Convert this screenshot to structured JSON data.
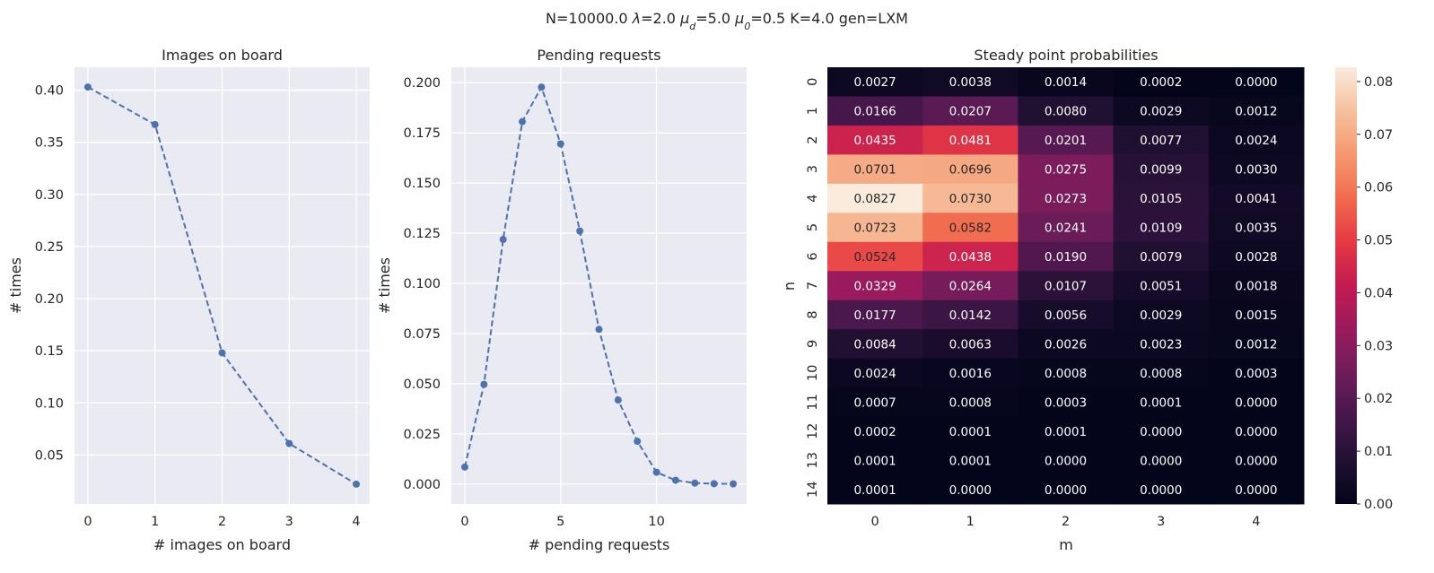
{
  "figure": {
    "suptitle": "N=10000.0  λ=2.0  μ_d=5.0  μ_0=0.5  K=4.0  gen=LXM",
    "suptitle_parts": [
      {
        "t": "N=10000.0  "
      },
      {
        "t": "λ",
        "style": "italic"
      },
      {
        "t": "=2.0  "
      },
      {
        "t": "μ",
        "style": "italic"
      },
      {
        "t": "d",
        "style": "sub"
      },
      {
        "t": "=5.0  "
      },
      {
        "t": "μ",
        "style": "italic"
      },
      {
        "t": "0",
        "style": "sub"
      },
      {
        "t": "=0.5  K=4.0  gen=LXM"
      }
    ]
  },
  "chart_data": [
    {
      "type": "line",
      "title": "Images on board",
      "xlabel": "# images on board",
      "ylabel": "# times",
      "x": [
        0,
        1,
        2,
        3,
        4
      ],
      "values": [
        0.403,
        0.367,
        0.148,
        0.061,
        0.022
      ],
      "xlim": [
        -0.2,
        4.2
      ],
      "ylim": [
        0.003,
        0.422
      ],
      "xticks": [
        0,
        1,
        2,
        3,
        4
      ],
      "yticks": [
        0.05,
        0.1,
        0.15,
        0.2,
        0.25,
        0.3,
        0.35,
        0.4
      ],
      "ytick_labels": [
        "0.05",
        "0.10",
        "0.15",
        "0.20",
        "0.25",
        "0.30",
        "0.35",
        "0.40"
      ],
      "line_style": "dashed",
      "marker": "circle",
      "color": "#4c72b0",
      "grid": true
    },
    {
      "type": "line",
      "title": "Pending requests",
      "xlabel": "# pending requests",
      "ylabel": "# times",
      "x": [
        0,
        1,
        2,
        3,
        4,
        5,
        6,
        7,
        8,
        9,
        10,
        11,
        12,
        13,
        14
      ],
      "values": [
        0.0085,
        0.0497,
        0.1219,
        0.1806,
        0.1978,
        0.1695,
        0.1261,
        0.0771,
        0.0419,
        0.0213,
        0.0059,
        0.0019,
        0.0005,
        0.0002,
        0.0001
      ],
      "xlim": [
        -0.7,
        14.7
      ],
      "ylim": [
        -0.0099,
        0.2077
      ],
      "xticks": [
        0,
        5,
        10
      ],
      "yticks": [
        0.0,
        0.025,
        0.05,
        0.075,
        0.1,
        0.125,
        0.15,
        0.175,
        0.2
      ],
      "ytick_labels": [
        "0.000",
        "0.025",
        "0.050",
        "0.075",
        "0.100",
        "0.125",
        "0.150",
        "0.175",
        "0.200"
      ],
      "line_style": "dashed",
      "marker": "circle",
      "color": "#4c72b0",
      "grid": true
    },
    {
      "type": "heatmap",
      "title": "Steady point probabilities",
      "xlabel": "m",
      "ylabel": "n",
      "x_categories": [
        "0",
        "1",
        "2",
        "3",
        "4"
      ],
      "y_categories": [
        "0",
        "1",
        "2",
        "3",
        "4",
        "5",
        "6",
        "7",
        "8",
        "9",
        "10",
        "11",
        "12",
        "13",
        "14"
      ],
      "values": [
        [
          0.0027,
          0.0038,
          0.0014,
          0.0002,
          0.0
        ],
        [
          0.0166,
          0.0207,
          0.008,
          0.0029,
          0.0012
        ],
        [
          0.0435,
          0.0481,
          0.0201,
          0.0077,
          0.0024
        ],
        [
          0.0701,
          0.0696,
          0.0275,
          0.0099,
          0.003
        ],
        [
          0.0827,
          0.073,
          0.0273,
          0.0105,
          0.0041
        ],
        [
          0.0723,
          0.0582,
          0.0241,
          0.0109,
          0.0035
        ],
        [
          0.0524,
          0.0438,
          0.019,
          0.0079,
          0.0028
        ],
        [
          0.0329,
          0.0264,
          0.0107,
          0.0051,
          0.0018
        ],
        [
          0.0177,
          0.0142,
          0.0056,
          0.0029,
          0.0015
        ],
        [
          0.0084,
          0.0063,
          0.0026,
          0.0023,
          0.0012
        ],
        [
          0.0024,
          0.0016,
          0.0008,
          0.0008,
          0.0003
        ],
        [
          0.0007,
          0.0008,
          0.0003,
          0.0001,
          0.0
        ],
        [
          0.0002,
          0.0001,
          0.0001,
          0.0,
          0.0
        ],
        [
          0.0001,
          0.0001,
          0.0,
          0.0,
          0.0
        ],
        [
          0.0001,
          0.0,
          0.0,
          0.0,
          0.0
        ]
      ],
      "value_range": [
        0.0,
        0.0827
      ],
      "colormap": "rocket",
      "colorbar_ticks": [
        0.0,
        0.01,
        0.02,
        0.03,
        0.04,
        0.05,
        0.06,
        0.07,
        0.08
      ],
      "colorbar_tick_labels": [
        "0.00",
        "0.01",
        "0.02",
        "0.03",
        "0.04",
        "0.05",
        "0.06",
        "0.07",
        "0.08"
      ],
      "annotations": true
    }
  ]
}
